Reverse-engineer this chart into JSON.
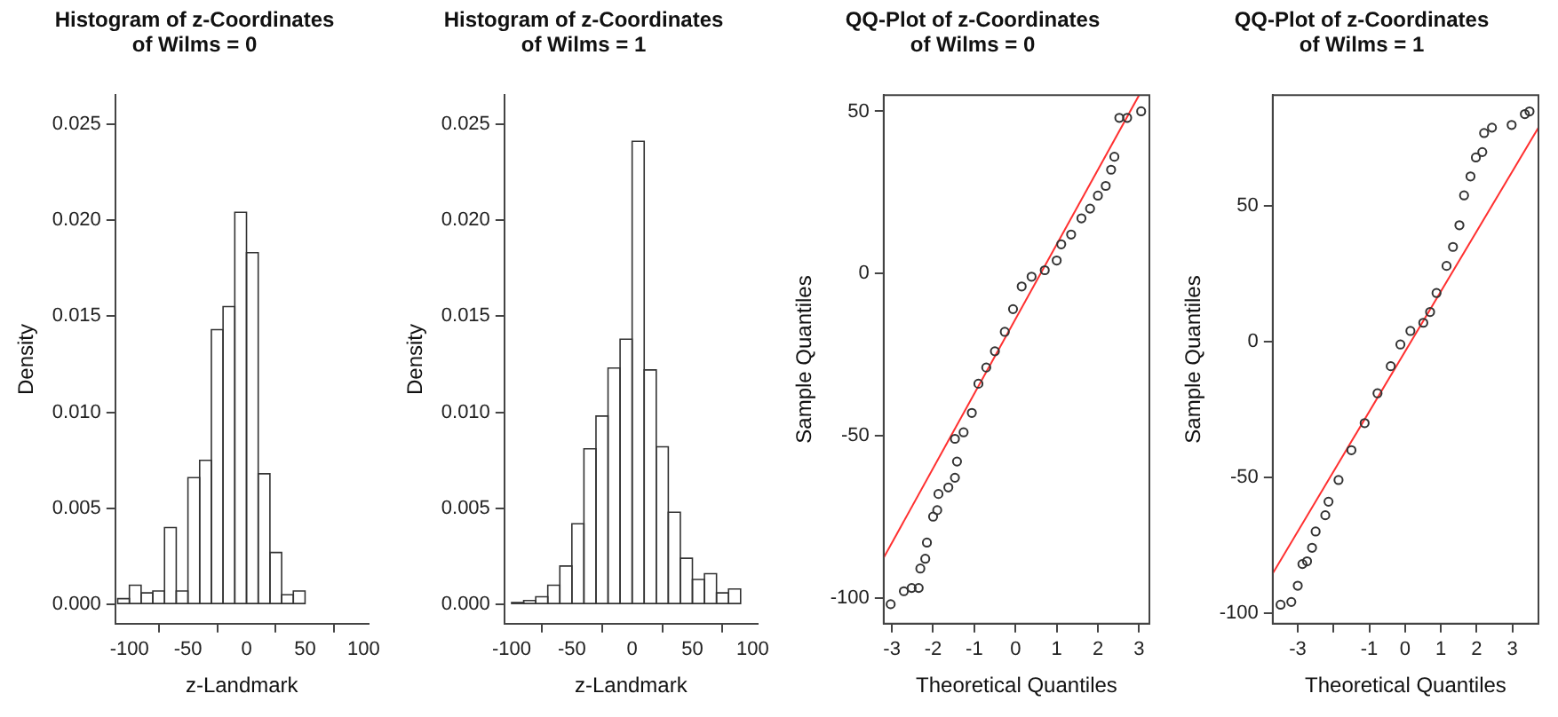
{
  "chart_data": [
    {
      "type": "histogram",
      "title": "Histogram of z-Coordinates\nof Wilms = 0",
      "xlabel": "z-Landmark",
      "ylabel": "Density",
      "color": "#ffffff",
      "bins": [
        -110,
        -100,
        -90,
        -80,
        -70,
        -60,
        -50,
        -40,
        -30,
        -20,
        -10,
        0,
        10,
        20,
        30,
        40,
        50
      ],
      "values": [
        0.0003,
        0.001,
        0.0006,
        0.0007,
        0.004,
        0.0007,
        0.0066,
        0.0075,
        0.0143,
        0.0155,
        0.0204,
        0.0183,
        0.0068,
        0.0027,
        0.0005,
        0.0007
      ],
      "xlim": [
        -112,
        104
      ],
      "ylim": [
        -0.001,
        0.0265
      ],
      "xticks": [
        -100,
        -50,
        0,
        50,
        100
      ],
      "yticks": [
        {
          "value": 0,
          "label": "0.000"
        },
        {
          "value": 0.005,
          "label": "0.005"
        },
        {
          "value": 0.01,
          "label": "0.010"
        },
        {
          "value": 0.015,
          "label": "0.015"
        },
        {
          "value": 0.02,
          "label": "0.020"
        },
        {
          "value": 0.025,
          "label": "0.025"
        }
      ]
    },
    {
      "type": "histogram",
      "title": "Histogram of z-Coordinates\nof Wilms = 1",
      "xlabel": "z-Landmark",
      "ylabel": "Density",
      "color": "#ffffff",
      "bins": [
        -100,
        -90,
        -80,
        -70,
        -60,
        -50,
        -40,
        -30,
        -20,
        -10,
        0,
        10,
        20,
        30,
        40,
        50,
        60,
        70,
        80,
        90
      ],
      "values": [
        0.0001,
        0.0002,
        0.0004,
        0.001,
        0.002,
        0.0042,
        0.0081,
        0.0098,
        0.0123,
        0.0138,
        0.0241,
        0.0122,
        0.0082,
        0.0048,
        0.0024,
        0.0013,
        0.0016,
        0.0006,
        0.0008
      ],
      "xlim": [
        -106,
        104
      ],
      "ylim": [
        -0.001,
        0.0265
      ],
      "xticks": [
        -100,
        -50,
        0,
        50,
        100
      ],
      "yticks": [
        {
          "value": 0,
          "label": "0.000"
        },
        {
          "value": 0.005,
          "label": "0.005"
        },
        {
          "value": 0.01,
          "label": "0.010"
        },
        {
          "value": 0.015,
          "label": "0.015"
        },
        {
          "value": 0.02,
          "label": "0.020"
        },
        {
          "value": 0.025,
          "label": "0.025"
        }
      ]
    },
    {
      "type": "scatter",
      "title": "QQ-Plot of z-Coordinates\nof Wilms = 0",
      "xlabel": "Theoretical Quantiles",
      "ylabel": "Sample Quantiles",
      "series": [
        {
          "type": "scatter",
          "color": "#333333",
          "marker": "circle",
          "x": [
            -3.03,
            -2.71,
            -2.52,
            -2.35,
            -2.31,
            -2.19,
            -2.15,
            -2.0,
            -1.9,
            -1.87,
            -1.63,
            -1.47,
            -1.42,
            -1.47,
            -1.26,
            -1.06,
            -0.9,
            -0.71,
            -0.5,
            -0.26,
            -0.06,
            0.15,
            0.39,
            0.71,
            1.0,
            1.11,
            1.35,
            1.6,
            1.81,
            2.0,
            2.19,
            2.32,
            2.4,
            2.52,
            2.71,
            3.05
          ],
          "values": [
            -102,
            -98,
            -97,
            -97,
            -91,
            -88,
            -83,
            -75,
            -73,
            -68,
            -66,
            -63,
            -58,
            -51,
            -49,
            -43,
            -34,
            -29,
            -24,
            -18,
            -11,
            -4,
            -1,
            1,
            4,
            9,
            12,
            17,
            20,
            24,
            27,
            32,
            36,
            48,
            48,
            50
          ]
        },
        {
          "type": "line",
          "color": "#ff3030",
          "x": [
            -3.2,
            3.0
          ],
          "values": [
            -87.7,
            55
          ]
        }
      ],
      "xlim": [
        -3.2,
        3.25
      ],
      "ylim": [
        -108,
        55
      ],
      "xticks": [
        -3,
        -2,
        -1,
        0,
        1,
        2,
        3
      ],
      "yticks": [
        -100,
        -50,
        0,
        50
      ]
    },
    {
      "type": "scatter",
      "title": "QQ-Plot of z-Coordinates\nof Wilms = 1",
      "xlabel": "Theoretical Quantiles",
      "ylabel": "Sample Quantiles",
      "series": [
        {
          "type": "scatter",
          "color": "#333333",
          "marker": "circle",
          "x": [
            -3.48,
            -3.18,
            -3.0,
            -2.87,
            -2.74,
            -2.6,
            -2.5,
            -2.23,
            -2.14,
            -1.86,
            -1.5,
            -1.13,
            -0.77,
            -0.4,
            -0.13,
            0.15,
            0.51,
            0.7,
            0.88,
            1.16,
            1.34,
            1.52,
            1.65,
            1.83,
            1.98,
            2.16,
            2.21,
            2.43,
            2.98,
            3.35,
            3.48
          ],
          "values": [
            -97,
            -96,
            -90,
            -82,
            -81,
            -76,
            -70,
            -64,
            -59,
            -51,
            -40,
            -30,
            -19,
            -9,
            -1,
            4,
            7,
            11,
            18,
            28,
            35,
            43,
            54,
            61,
            68,
            70,
            77,
            79,
            80,
            84,
            85
          ]
        },
        {
          "type": "line",
          "color": "#ff3030",
          "x": [
            -3.7,
            3.73
          ],
          "values": [
            -85.5,
            79
          ]
        }
      ],
      "xlim": [
        -3.7,
        3.73
      ],
      "ylim": [
        -104,
        91
      ],
      "xticks": [
        -3,
        {
          "value": -2,
          "label": null
        },
        -1,
        0,
        1,
        2,
        3
      ],
      "yticks": [
        -100,
        -50,
        0,
        50
      ]
    }
  ]
}
